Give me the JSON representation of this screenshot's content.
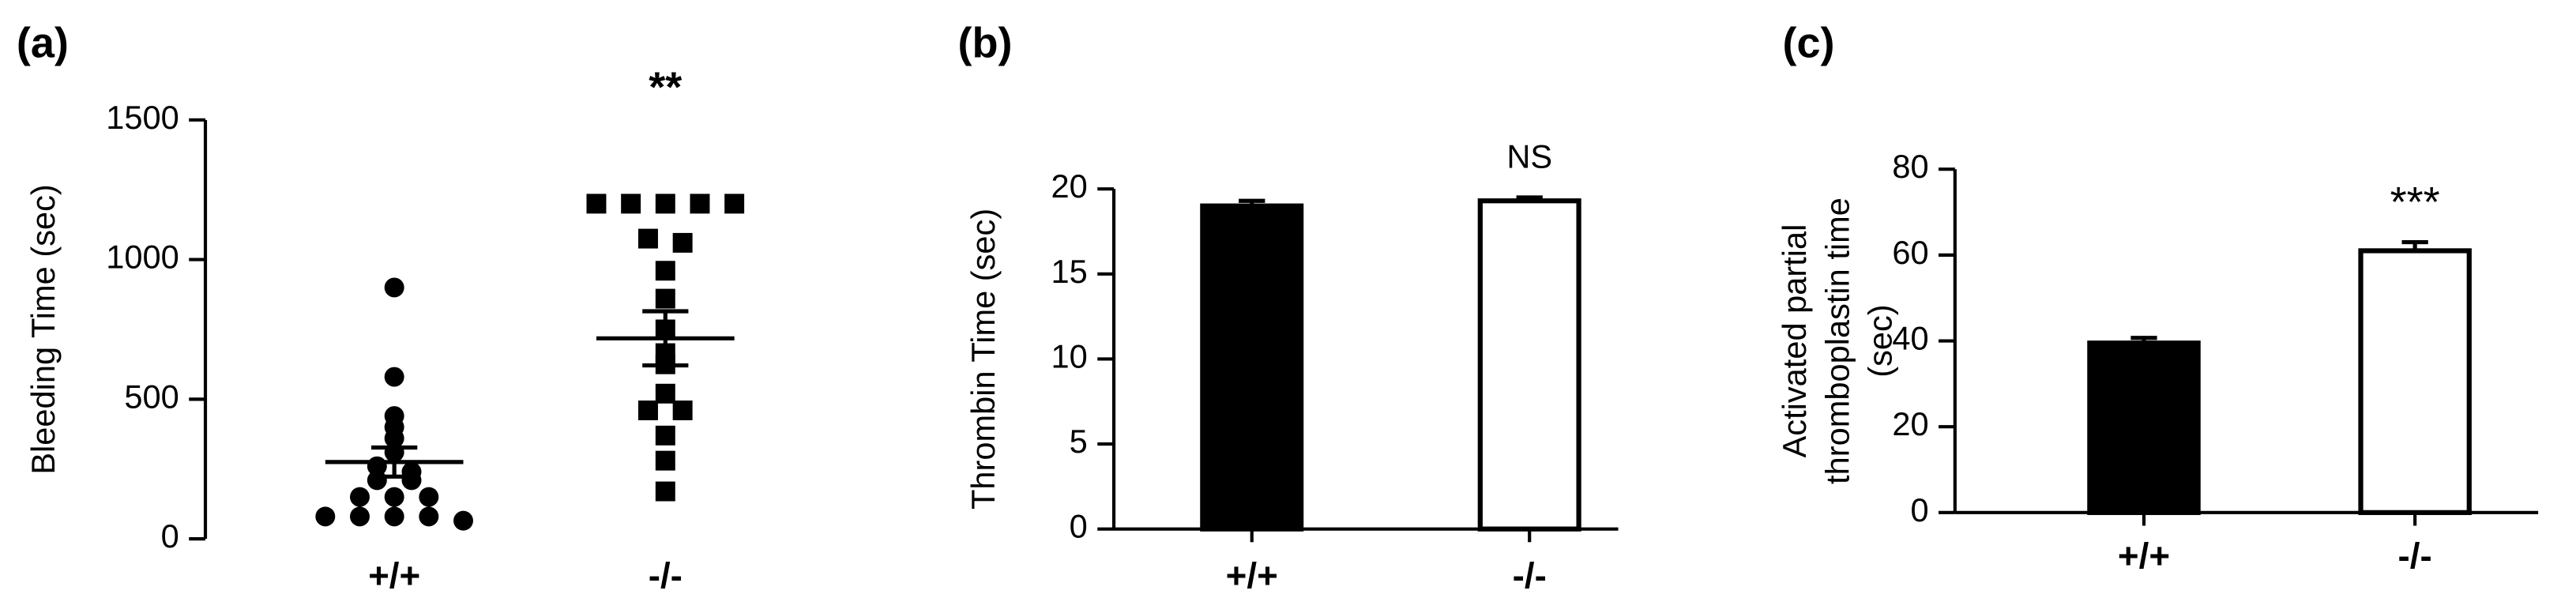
{
  "chart_data": [
    {
      "type": "dot",
      "title": "(a)",
      "y_label": [
        "Bleeding Time (sec)"
      ],
      "annotation": "**",
      "categories": [
        "+/+",
        "-/-"
      ],
      "groups": [
        {
          "marker": "circle",
          "values": [
            900,
            580,
            440,
            400,
            360,
            310,
            260,
            240,
            210,
            210,
            150,
            150,
            150,
            80,
            80,
            80,
            80,
            65
          ],
          "mean": 275,
          "sem": 52
        },
        {
          "marker": "square",
          "values": [
            1200,
            1200,
            1200,
            1200,
            1200,
            1075,
            1060,
            960,
            860,
            750,
            665,
            625,
            520,
            460,
            460,
            370,
            280,
            170
          ],
          "mean": 718,
          "sem": 97
        }
      ],
      "color": "#000000",
      "ylim": [
        0,
        1500
      ],
      "yticks": [
        0,
        500,
        1000,
        1500
      ]
    },
    {
      "type": "bar",
      "title": "(b)",
      "y_label": [
        "Thrombin Time (sec)"
      ],
      "annotation": "NS",
      "categories": [
        "+/+",
        "-/-"
      ],
      "values": [
        19,
        19.3
      ],
      "errors": [
        0.3,
        0.2
      ],
      "colors": [
        "#000000",
        "#ffffff"
      ],
      "ylim": [
        0,
        20
      ],
      "yticks": [
        0,
        5,
        10,
        15,
        20
      ]
    },
    {
      "type": "bar",
      "title": "(c)",
      "y_label": [
        "Activated partial",
        "thromboplastin time",
        "(sec)"
      ],
      "annotation": "***",
      "categories": [
        "+/+",
        "-/-"
      ],
      "values": [
        39.5,
        61
      ],
      "errors": [
        1.2,
        2
      ],
      "colors": [
        "#000000",
        "#ffffff"
      ],
      "ylim": [
        0,
        80
      ],
      "yticks": [
        0,
        20,
        40,
        60,
        80
      ]
    }
  ]
}
